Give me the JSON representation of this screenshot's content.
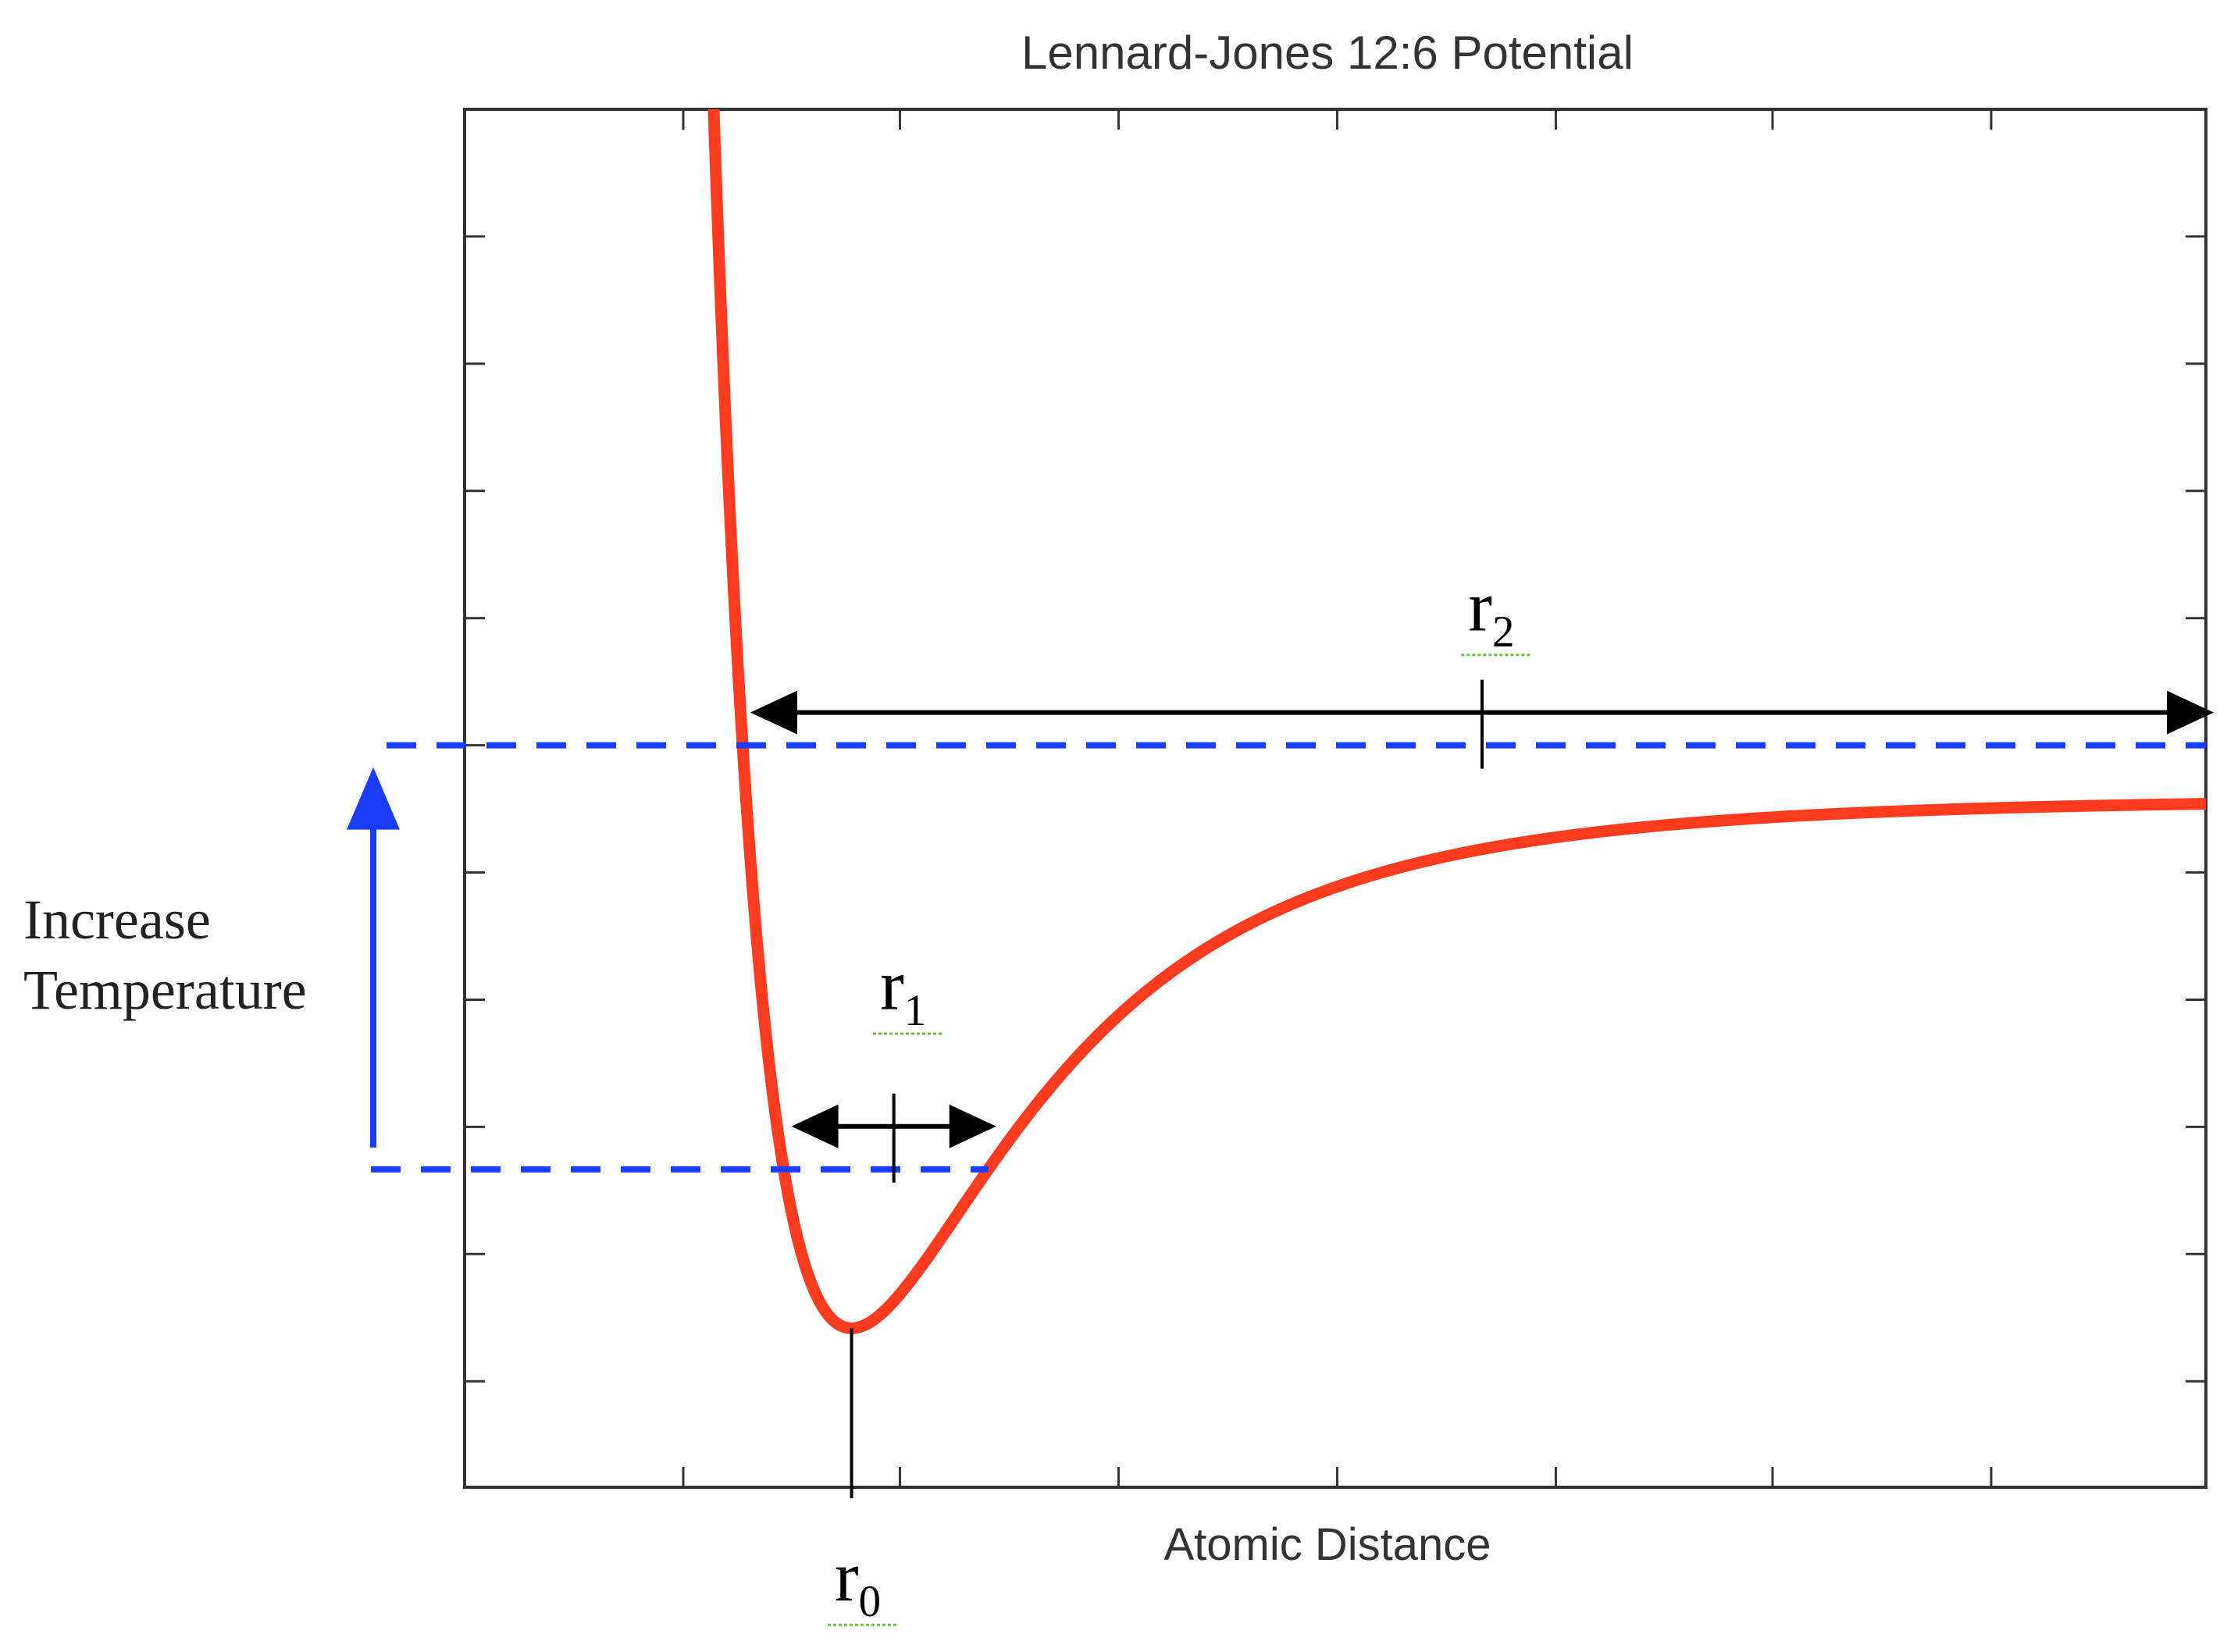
{
  "chart_data": {
    "type": "line",
    "title": "Lennard-Jones 12:6 Potential",
    "xlabel": "Atomic Distance",
    "ylabel": "",
    "xlim": [
      0.6,
      2.4
    ],
    "ylim": [
      -1.3,
      1.3
    ],
    "xticks": [
      0.6,
      0.826,
      1.05,
      1.276,
      1.502,
      1.728,
      1.952,
      2.178,
      2.4
    ],
    "yticks": [
      1.3,
      1.06,
      0.82,
      0.58,
      0.34,
      0.1,
      -0.14,
      -0.38,
      -0.62,
      -0.86,
      -1.1,
      -1.3
    ],
    "grid": false,
    "series": [
      {
        "name": "",
        "color": "#ff3b1f",
        "epsilon": 1.0,
        "sigma": 0.8909,
        "x_start": 0.8,
        "x_end": 2.4
      }
    ],
    "annotations": {
      "r0": {
        "label": "r",
        "sub": "0",
        "x": 1.0
      },
      "r1": {
        "label": "r",
        "sub": "1",
        "energy": -0.7
      },
      "r2": {
        "label": "r",
        "sub": "2",
        "energy": 0.1
      },
      "temperature": {
        "line1": "Increase",
        "line2": "Temperature"
      }
    },
    "colors": {
      "curve": "#ff3b1f",
      "dashed": "#1a3cff",
      "arrow": "#000000",
      "temp_arrow": "#1a3cff",
      "frame": "#333333"
    }
  }
}
